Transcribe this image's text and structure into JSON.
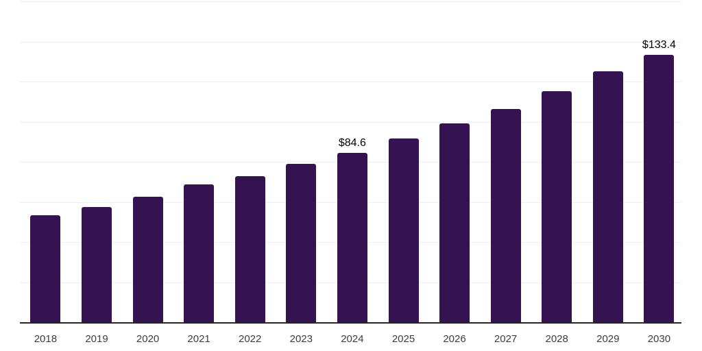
{
  "chart_data": {
    "type": "bar",
    "title": "",
    "categories": [
      "2018",
      "2019",
      "2020",
      "2021",
      "2022",
      "2023",
      "2024",
      "2025",
      "2026",
      "2027",
      "2028",
      "2029",
      "2030"
    ],
    "values": [
      53.4,
      57.5,
      62.7,
      68.8,
      72.9,
      79.1,
      84.6,
      91.8,
      99.0,
      106.5,
      115.4,
      125.0,
      133.4
    ],
    "point_labels": [
      "",
      "",
      "",
      "",
      "",
      "",
      "$84.6",
      "",
      "",
      "",
      "",
      "",
      "$133.4"
    ],
    "xlabel": "",
    "ylabel": "",
    "ylim": [
      0,
      160
    ],
    "gridline_step": 20,
    "grid_on": true,
    "y_tick_labels_visible": false,
    "legend_position": "none",
    "colors": {
      "bar": "#351252",
      "gridline": "#efefef",
      "axis_line": "#262626",
      "tick_label": "#3d3d3d",
      "value_label": "#000000",
      "background": "#ffffff"
    }
  }
}
